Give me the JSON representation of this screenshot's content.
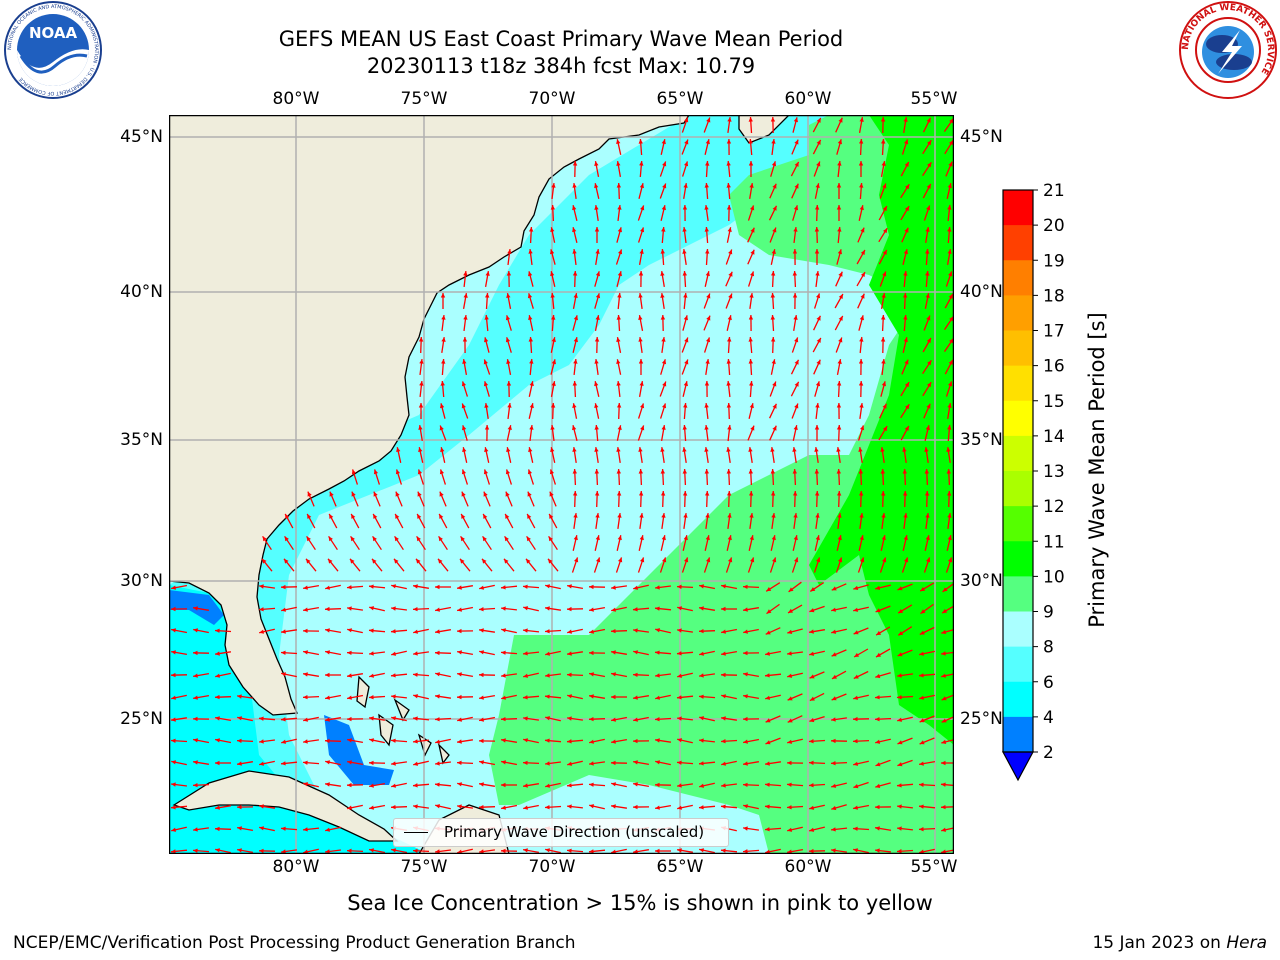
{
  "title": {
    "line1": "GEFS MEAN US East Coast Primary Wave Mean Period",
    "line2": "20230113 t18z 384h fcst   Max: 10.79"
  },
  "map": {
    "lon_labels": [
      "80°W",
      "75°W",
      "70°W",
      "65°W",
      "60°W",
      "55°W"
    ],
    "lat_labels": [
      "45°N",
      "40°N",
      "35°N",
      "30°N",
      "25°N"
    ],
    "colors": {
      "land": "#efeddc",
      "coast": "#000000",
      "grid": "#b0b0b0",
      "arrow": "#ff0000"
    },
    "legend_label": "Primary Wave Direction (unscaled)"
  },
  "colorbar": {
    "label": "Primary Wave Mean Period [s]",
    "tick_labels": [
      "2",
      "4",
      "6",
      "8",
      "9",
      "10",
      "11",
      "12",
      "13",
      "14",
      "15",
      "16",
      "17",
      "18",
      "19",
      "20",
      "21"
    ],
    "colors": [
      "#0000ff",
      "#0080ff",
      "#00ffff",
      "#55ffff",
      "#aaffff",
      "#55ff80",
      "#00ff00",
      "#55ff00",
      "#aaff00",
      "#ccff00",
      "#ffff00",
      "#ffe000",
      "#ffbf00",
      "#ff9f00",
      "#ff7f00",
      "#ff4000",
      "#ff0000"
    ]
  },
  "caption": "Sea Ice Concentration > 15% is shown in pink to yellow",
  "footer": {
    "left": "NCEP/EMC/Verification Post Processing Product Generation Branch",
    "date": "15 Jan 2023 on ",
    "host": "Hera"
  },
  "logos": {
    "noaa_text": "NOAA",
    "noaa_ring": "NATIONAL OCEANIC AND ATMOSPHERIC ADMINISTRATION · U.S. DEPARTMENT OF COMMERCE",
    "nws_ring": "NATIONAL WEATHER SERVICE"
  }
}
